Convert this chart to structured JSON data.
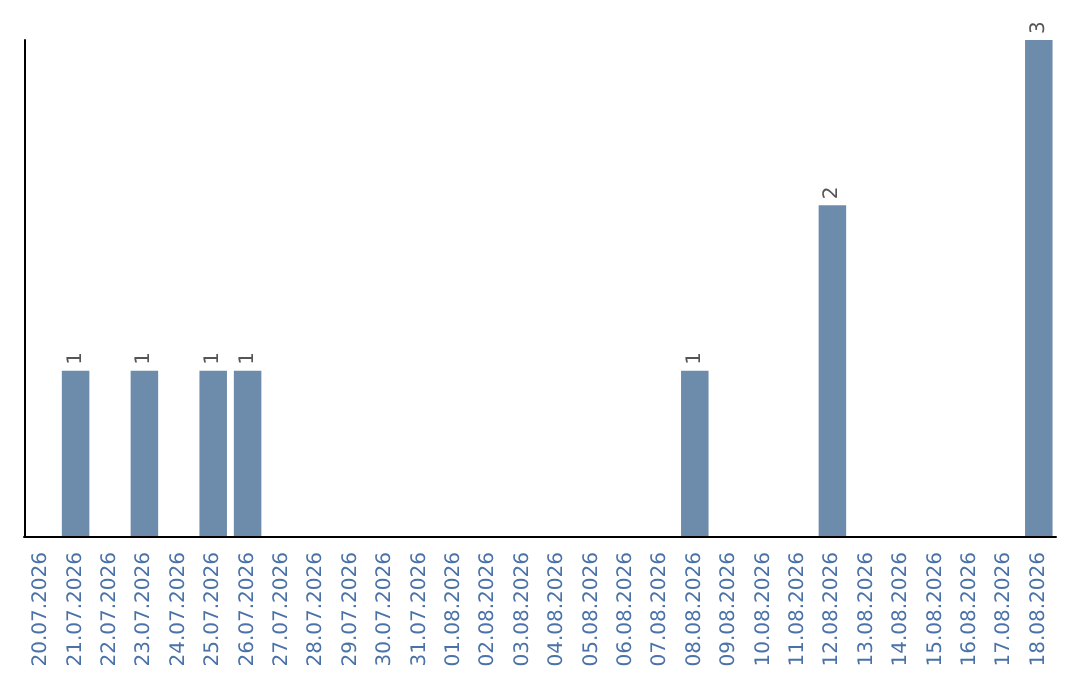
{
  "chart_data": {
    "type": "bar",
    "categories": [
      "20.07.2026",
      "21.07.2026",
      "22.07.2026",
      "23.07.2026",
      "24.07.2026",
      "25.07.2026",
      "26.07.2026",
      "27.07.2026",
      "28.07.2026",
      "29.07.2026",
      "30.07.2026",
      "31.07.2026",
      "01.08.2026",
      "02.08.2026",
      "03.08.2026",
      "04.08.2026",
      "05.08.2026",
      "06.08.2026",
      "07.08.2026",
      "08.08.2026",
      "09.08.2026",
      "10.08.2026",
      "11.08.2026",
      "12.08.2026",
      "13.08.2026",
      "14.08.2026",
      "15.08.2026",
      "16.08.2026",
      "17.08.2026",
      "18.08.2026"
    ],
    "values": [
      0,
      1,
      0,
      1,
      0,
      1,
      1,
      0,
      0,
      0,
      0,
      0,
      0,
      0,
      0,
      0,
      0,
      0,
      0,
      1,
      0,
      0,
      0,
      2,
      0,
      0,
      0,
      0,
      0,
      3
    ],
    "value_labels": [
      null,
      "1",
      null,
      "1",
      null,
      "1",
      "1",
      null,
      null,
      null,
      null,
      null,
      null,
      null,
      null,
      null,
      null,
      null,
      null,
      "1",
      null,
      null,
      null,
      "2",
      null,
      null,
      null,
      null,
      null,
      "3"
    ],
    "color": "#6d8cab"
  }
}
